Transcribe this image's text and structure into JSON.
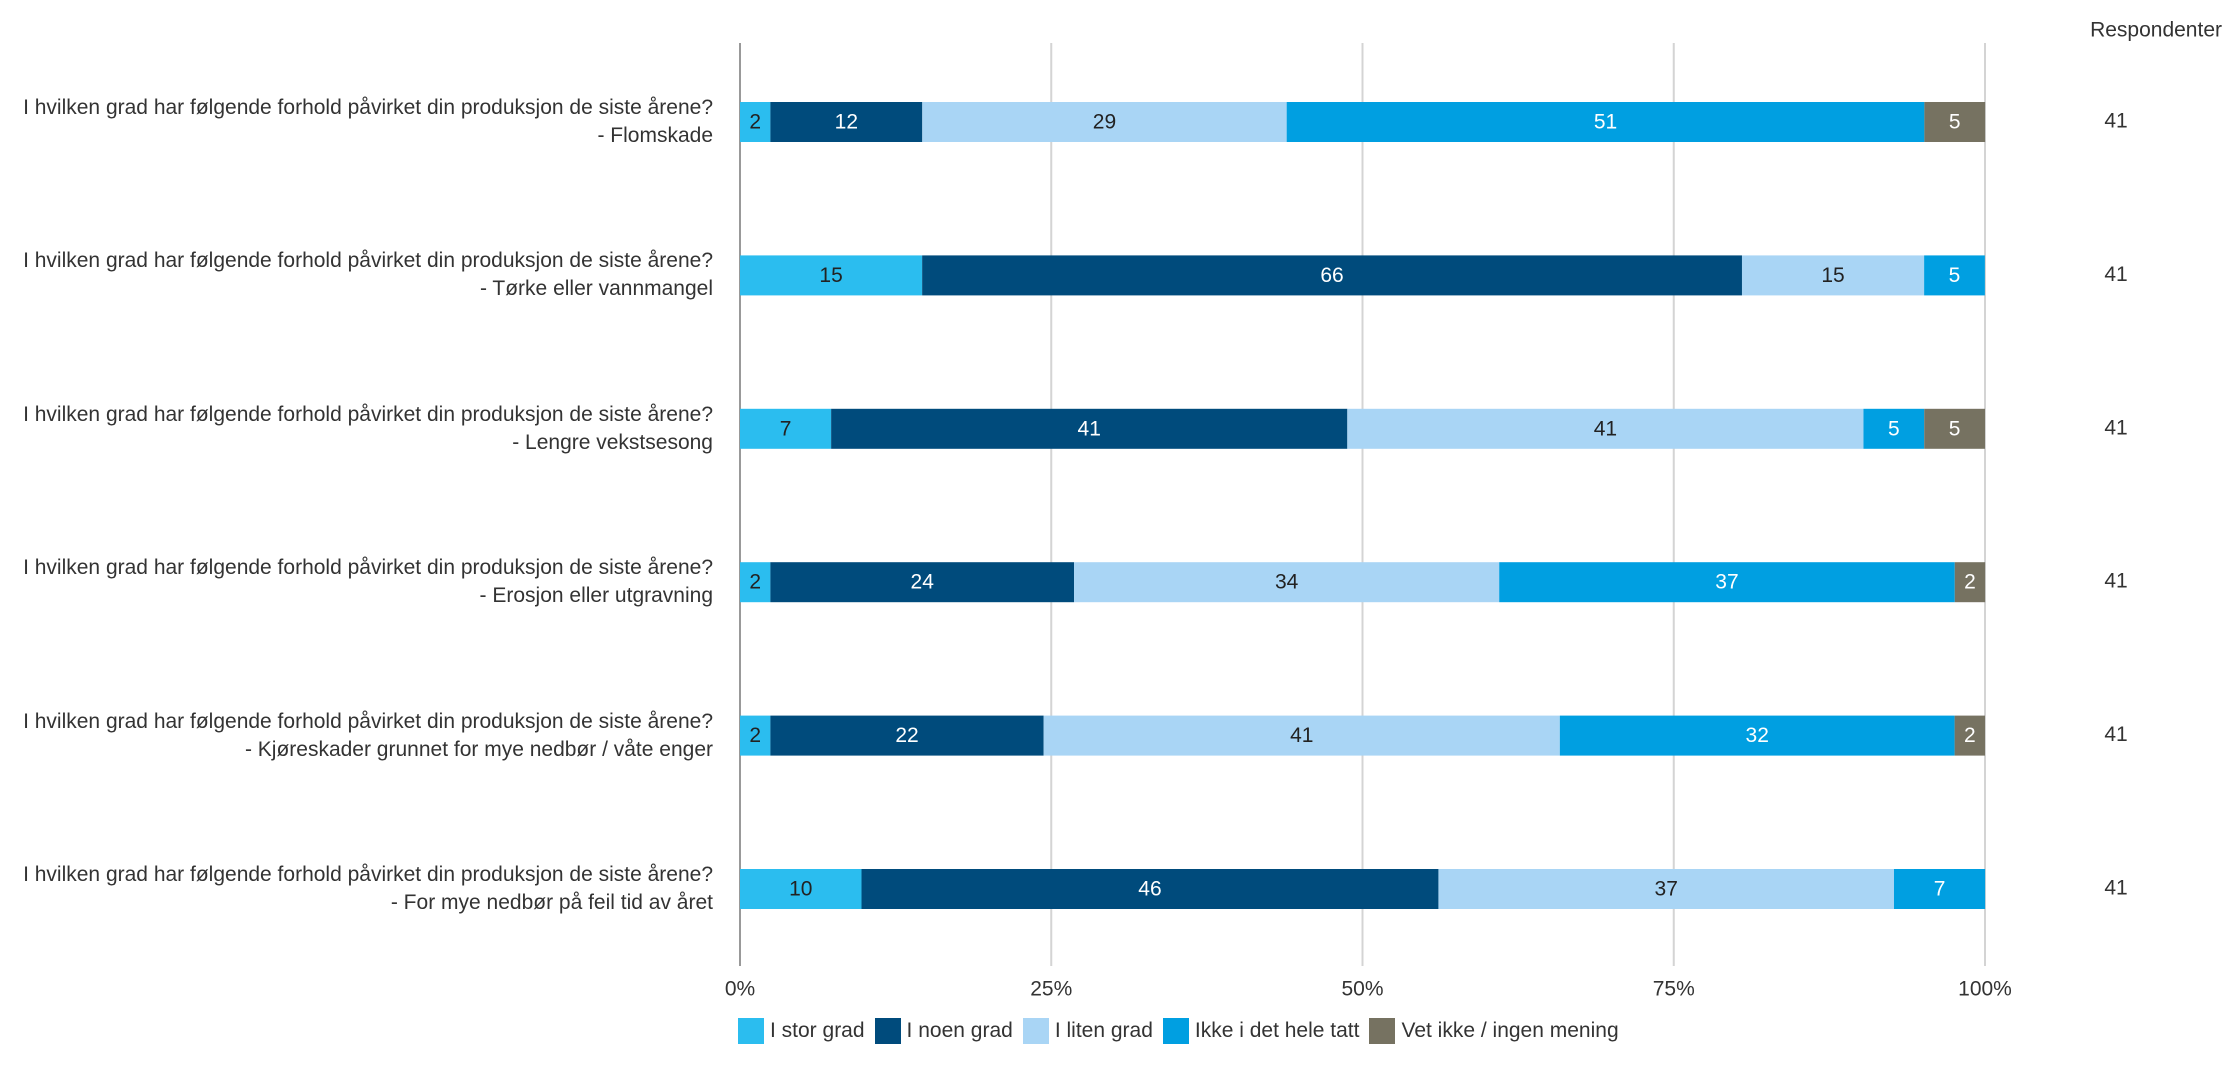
{
  "chart_data": {
    "type": "bar",
    "orientation": "horizontal",
    "stacked": true,
    "categories": [
      "I hvilken grad har følgende forhold påvirket din produksjon de siste årene? - Flomskade",
      "I hvilken grad har følgende forhold påvirket din produksjon de siste årene? - Tørke eller vannmangel",
      "I hvilken grad har følgende forhold påvirket din produksjon de siste årene? - Lengre vekstsesong",
      "I hvilken grad har følgende forhold påvirket din produksjon de siste årene? - Erosjon eller utgravning",
      "I hvilken grad har følgende forhold påvirket din produksjon de siste årene? - Kjøreskader grunnet for mye nedbør / våte enger",
      "I hvilken grad har følgende forhold påvirket din produksjon de siste årene? - For mye nedbør på feil tid av året"
    ],
    "series": [
      {
        "name": "I stor grad",
        "color": "#2bbdef",
        "values": [
          2.44,
          14.63,
          7.32,
          2.44,
          2.44,
          9.76
        ],
        "value_labels": [
          "2",
          "15",
          "7",
          "2",
          "2",
          "10"
        ]
      },
      {
        "name": "I noen grad",
        "color": "#004b7c",
        "values": [
          12.2,
          65.85,
          41.46,
          24.39,
          21.95,
          46.34
        ],
        "value_labels": [
          "12",
          "66",
          "41",
          "24",
          "22",
          "46"
        ]
      },
      {
        "name": "I liten grad",
        "color": "#a9d5f5",
        "values": [
          29.27,
          14.63,
          41.46,
          34.15,
          41.46,
          36.59
        ],
        "value_labels": [
          "29",
          "15",
          "41",
          "34",
          "41",
          "37"
        ]
      },
      {
        "name": "Ikke i det hele tatt",
        "color": "#009fe1",
        "values": [
          51.22,
          4.88,
          4.88,
          36.59,
          31.71,
          7.32
        ],
        "value_labels": [
          "51",
          "5",
          "5",
          "37",
          "32",
          "7"
        ]
      },
      {
        "name": "Vet ikke / ingen mening",
        "color": "#767261",
        "values": [
          4.88,
          null,
          4.88,
          2.44,
          2.44,
          null
        ],
        "value_labels": [
          "5",
          null,
          "5",
          "2",
          "2",
          null
        ]
      }
    ],
    "xlim": [
      0,
      100
    ],
    "xticks": [
      {
        "value": 0,
        "label": "0%"
      },
      {
        "value": 25,
        "label": "25%"
      },
      {
        "value": 50,
        "label": "50%"
      },
      {
        "value": 75,
        "label": "75%"
      },
      {
        "value": 100,
        "label": "100%"
      }
    ],
    "grid": true,
    "respondents_label": "Respondenter",
    "respondents": [
      41,
      41,
      41,
      41,
      41,
      41
    ]
  }
}
